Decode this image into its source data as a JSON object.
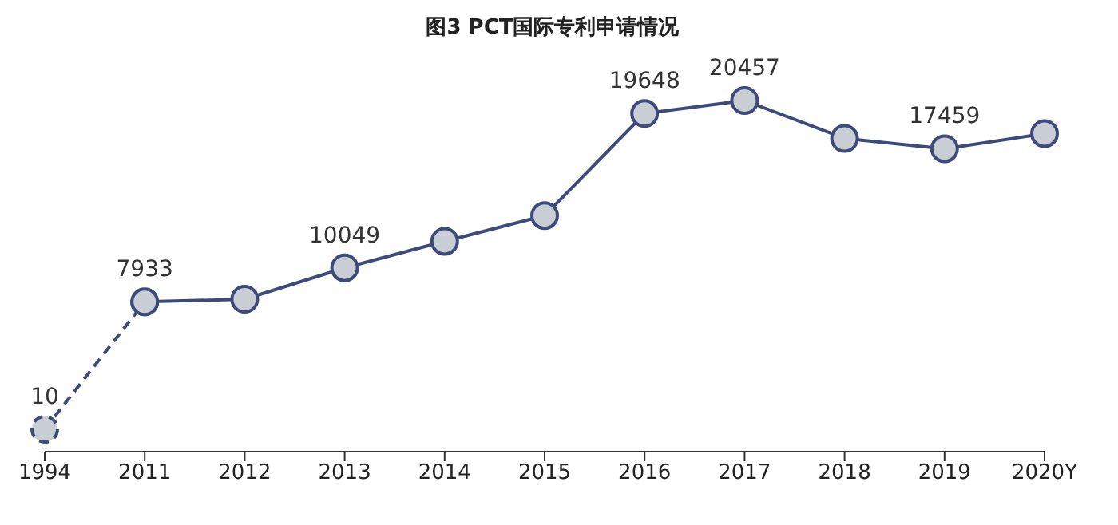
{
  "chart_data": {
    "type": "line",
    "title": "图3  PCT国际专利申请情况",
    "categories": [
      "1994",
      "2011",
      "2012",
      "2013",
      "2014",
      "2015",
      "2016",
      "2017",
      "2018",
      "2019",
      "2020Y"
    ],
    "series": [
      {
        "color": "#3c4a7c",
        "line_style": "dashed",
        "values": [
          10,
          7933,
          null,
          null,
          null,
          null,
          null,
          null,
          null,
          null,
          null
        ],
        "value_labels": [
          "10",
          null,
          null,
          null,
          null,
          null,
          null,
          null,
          null,
          null,
          null
        ]
      },
      {
        "color": "#3c4a7c",
        "line_style": "solid",
        "values": [
          null,
          7933,
          8100,
          10049,
          11700,
          13300,
          19648,
          20457,
          18100,
          17459,
          18400
        ],
        "value_labels": [
          null,
          "7933",
          null,
          "10049",
          null,
          null,
          "19648",
          "20457",
          null,
          "17459",
          null
        ]
      }
    ],
    "marker": "circle",
    "tick_labels": "x",
    "grid": false,
    "legend": false
  }
}
